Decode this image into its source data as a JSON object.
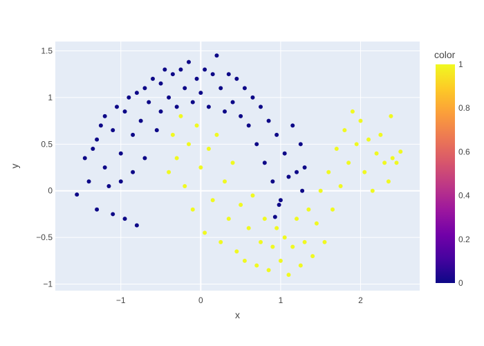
{
  "chart_data": {
    "type": "scatter",
    "title": "",
    "xlabel": "x",
    "ylabel": "y",
    "xlim": [
      -1.82,
      2.74
    ],
    "ylim": [
      -1.07,
      1.6
    ],
    "x_ticks": [
      -1,
      0,
      1,
      2
    ],
    "x_tick_labels": [
      "−1",
      "0",
      "1",
      "2"
    ],
    "y_ticks": [
      -1,
      -0.5,
      0,
      0.5,
      1,
      1.5
    ],
    "y_tick_labels": [
      "−1",
      "−0.5",
      "0",
      "0.5",
      "1",
      "1.5"
    ],
    "grid": true,
    "plot_background": "#E5ECF6",
    "grid_color": "#ffffff",
    "colorbar": {
      "title": "color",
      "range": [
        0,
        1
      ],
      "tick_values": [
        0,
        0.2,
        0.4,
        0.6,
        0.8,
        1
      ],
      "tick_labels": [
        "0",
        "0.2",
        "0.4",
        "0.6",
        "0.8",
        "1"
      ],
      "colorscale": [
        "#0d0887",
        "#46039f",
        "#7201a8",
        "#9c179e",
        "#bd3786",
        "#d8576b",
        "#ed7953",
        "#fb9f3a",
        "#fdca26",
        "#f0f921"
      ],
      "placement": "right"
    },
    "series": [
      {
        "color_value": 0,
        "marker_color": "#0d0887",
        "points": [
          [
            -1.55,
            -0.04
          ],
          [
            -1.45,
            0.35
          ],
          [
            -1.4,
            0.1
          ],
          [
            -1.35,
            0.45
          ],
          [
            -1.3,
            0.55
          ],
          [
            -1.3,
            -0.2
          ],
          [
            -1.25,
            0.7
          ],
          [
            -1.2,
            0.25
          ],
          [
            -1.2,
            0.8
          ],
          [
            -1.15,
            0.05
          ],
          [
            -1.1,
            0.65
          ],
          [
            -1.1,
            -0.25
          ],
          [
            -1.05,
            0.9
          ],
          [
            -1.0,
            0.4
          ],
          [
            -1.0,
            0.1
          ],
          [
            -0.95,
            0.85
          ],
          [
            -0.95,
            -0.3
          ],
          [
            -0.9,
            1.0
          ],
          [
            -0.85,
            0.6
          ],
          [
            -0.85,
            0.2
          ],
          [
            -0.8,
            1.05
          ],
          [
            -0.8,
            -0.37
          ],
          [
            -0.75,
            0.75
          ],
          [
            -0.7,
            1.1
          ],
          [
            -0.7,
            0.35
          ],
          [
            -0.65,
            0.95
          ],
          [
            -0.6,
            1.2
          ],
          [
            -0.55,
            0.65
          ],
          [
            -0.5,
            1.15
          ],
          [
            -0.5,
            0.85
          ],
          [
            -0.45,
            1.3
          ],
          [
            -0.4,
            1.0
          ],
          [
            -0.35,
            1.25
          ],
          [
            -0.3,
            0.9
          ],
          [
            -0.25,
            1.3
          ],
          [
            -0.2,
            1.1
          ],
          [
            -0.15,
            1.38
          ],
          [
            -0.1,
            0.95
          ],
          [
            -0.05,
            1.2
          ],
          [
            0.0,
            1.05
          ],
          [
            0.05,
            1.3
          ],
          [
            0.1,
            0.9
          ],
          [
            0.15,
            1.25
          ],
          [
            0.2,
            1.45
          ],
          [
            0.25,
            1.1
          ],
          [
            0.3,
            0.85
          ],
          [
            0.35,
            1.25
          ],
          [
            0.4,
            0.95
          ],
          [
            0.45,
            1.2
          ],
          [
            0.5,
            0.8
          ],
          [
            0.55,
            1.1
          ],
          [
            0.6,
            0.7
          ],
          [
            0.65,
            1.0
          ],
          [
            0.7,
            0.5
          ],
          [
            0.75,
            0.9
          ],
          [
            0.8,
            0.3
          ],
          [
            0.85,
            0.75
          ],
          [
            0.9,
            0.1
          ],
          [
            0.95,
            0.6
          ],
          [
            1.0,
            -0.1
          ],
          [
            1.05,
            0.4
          ],
          [
            1.1,
            0.15
          ],
          [
            1.15,
            0.7
          ],
          [
            1.2,
            0.2
          ],
          [
            1.25,
            0.5
          ],
          [
            1.3,
            0.25
          ],
          [
            1.27,
            0.0
          ],
          [
            0.98,
            -0.15
          ],
          [
            0.93,
            -0.28
          ]
        ]
      },
      {
        "color_value": 1,
        "marker_color": "#f0f921",
        "points": [
          [
            -0.4,
            0.2
          ],
          [
            -0.35,
            0.6
          ],
          [
            -0.3,
            0.35
          ],
          [
            -0.25,
            0.8
          ],
          [
            -0.2,
            0.05
          ],
          [
            -0.15,
            0.5
          ],
          [
            -0.1,
            -0.2
          ],
          [
            -0.05,
            0.7
          ],
          [
            0.0,
            0.25
          ],
          [
            0.05,
            -0.45
          ],
          [
            0.1,
            0.45
          ],
          [
            0.15,
            -0.1
          ],
          [
            0.2,
            0.6
          ],
          [
            0.25,
            -0.55
          ],
          [
            0.3,
            0.1
          ],
          [
            0.35,
            -0.3
          ],
          [
            0.4,
            0.3
          ],
          [
            0.45,
            -0.65
          ],
          [
            0.5,
            -0.15
          ],
          [
            0.55,
            -0.75
          ],
          [
            0.6,
            -0.4
          ],
          [
            0.65,
            -0.05
          ],
          [
            0.7,
            -0.8
          ],
          [
            0.75,
            -0.55
          ],
          [
            0.8,
            -0.3
          ],
          [
            0.85,
            -0.85
          ],
          [
            0.9,
            -0.6
          ],
          [
            0.95,
            -0.4
          ],
          [
            1.0,
            -0.75
          ],
          [
            1.05,
            -0.5
          ],
          [
            1.1,
            -0.9
          ],
          [
            1.15,
            -0.6
          ],
          [
            1.2,
            -0.3
          ],
          [
            1.25,
            -0.8
          ],
          [
            1.3,
            -0.55
          ],
          [
            1.35,
            -0.2
          ],
          [
            1.4,
            -0.7
          ],
          [
            1.45,
            -0.35
          ],
          [
            1.5,
            0.0
          ],
          [
            1.55,
            -0.55
          ],
          [
            1.6,
            0.2
          ],
          [
            1.65,
            -0.2
          ],
          [
            1.7,
            0.45
          ],
          [
            1.75,
            0.05
          ],
          [
            1.8,
            0.65
          ],
          [
            1.85,
            0.3
          ],
          [
            1.9,
            0.85
          ],
          [
            1.95,
            0.5
          ],
          [
            2.0,
            0.75
          ],
          [
            2.05,
            0.2
          ],
          [
            2.1,
            0.55
          ],
          [
            2.15,
            0.0
          ],
          [
            2.2,
            0.4
          ],
          [
            2.25,
            0.6
          ],
          [
            2.3,
            0.3
          ],
          [
            2.35,
            0.1
          ],
          [
            2.4,
            0.35
          ],
          [
            2.45,
            0.3
          ],
          [
            2.5,
            0.42
          ],
          [
            2.38,
            0.8
          ]
        ]
      }
    ]
  }
}
